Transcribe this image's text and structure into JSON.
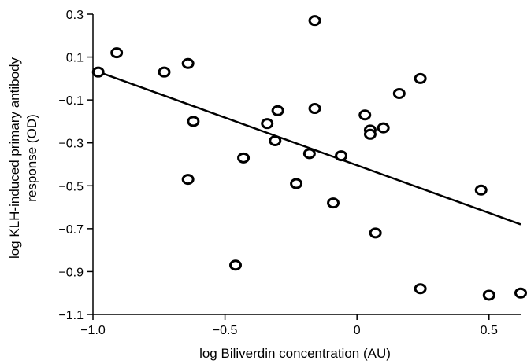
{
  "chart_data": {
    "type": "scatter",
    "xlabel": "log Biliverdin concentration (AU)",
    "ylabel_lines": [
      "log KLH-induced primary antibody",
      "response (OD)"
    ],
    "xlim": [
      -1.0,
      0.62
    ],
    "ylim": [
      -1.1,
      0.3
    ],
    "x_ticks": [
      -1.0,
      -0.5,
      0,
      0.5
    ],
    "x_tick_labels": [
      "−1.0",
      "−0.5",
      "0",
      "0.5"
    ],
    "y_ticks": [
      0.3,
      0.1,
      -0.1,
      -0.3,
      -0.5,
      -0.7,
      -0.9,
      -1.1
    ],
    "y_tick_labels": [
      "0.3",
      "0.1",
      "−0.1",
      "−0.3",
      "−0.5",
      "−0.7",
      "−0.9",
      "−1.1"
    ],
    "grid": false,
    "points": [
      {
        "x": -0.98,
        "y": 0.03
      },
      {
        "x": -0.91,
        "y": 0.12
      },
      {
        "x": -0.73,
        "y": 0.03
      },
      {
        "x": -0.64,
        "y": 0.07
      },
      {
        "x": -0.62,
        "y": -0.2
      },
      {
        "x": -0.64,
        "y": -0.47
      },
      {
        "x": -0.46,
        "y": -0.87
      },
      {
        "x": -0.43,
        "y": -0.37
      },
      {
        "x": -0.34,
        "y": -0.21
      },
      {
        "x": -0.31,
        "y": -0.29
      },
      {
        "x": -0.3,
        "y": -0.15
      },
      {
        "x": -0.23,
        "y": -0.49
      },
      {
        "x": -0.18,
        "y": -0.35
      },
      {
        "x": -0.16,
        "y": 0.27
      },
      {
        "x": -0.16,
        "y": -0.14
      },
      {
        "x": -0.09,
        "y": -0.58
      },
      {
        "x": -0.06,
        "y": -0.36
      },
      {
        "x": 0.03,
        "y": -0.17
      },
      {
        "x": 0.05,
        "y": -0.24
      },
      {
        "x": 0.05,
        "y": -0.26
      },
      {
        "x": 0.07,
        "y": -0.72
      },
      {
        "x": 0.1,
        "y": -0.23
      },
      {
        "x": 0.16,
        "y": -0.07
      },
      {
        "x": 0.24,
        "y": 0.0
      },
      {
        "x": 0.24,
        "y": -0.98
      },
      {
        "x": 0.47,
        "y": -0.52
      },
      {
        "x": 0.5,
        "y": -1.01
      },
      {
        "x": 0.62,
        "y": -1.0
      }
    ],
    "trendline": {
      "x": [
        -1.0,
        0.62
      ],
      "y": [
        0.04,
        -0.68
      ]
    },
    "colors": {
      "marker_stroke": "#000000",
      "marker_fill": "#ffffff",
      "line": "#000000"
    }
  }
}
